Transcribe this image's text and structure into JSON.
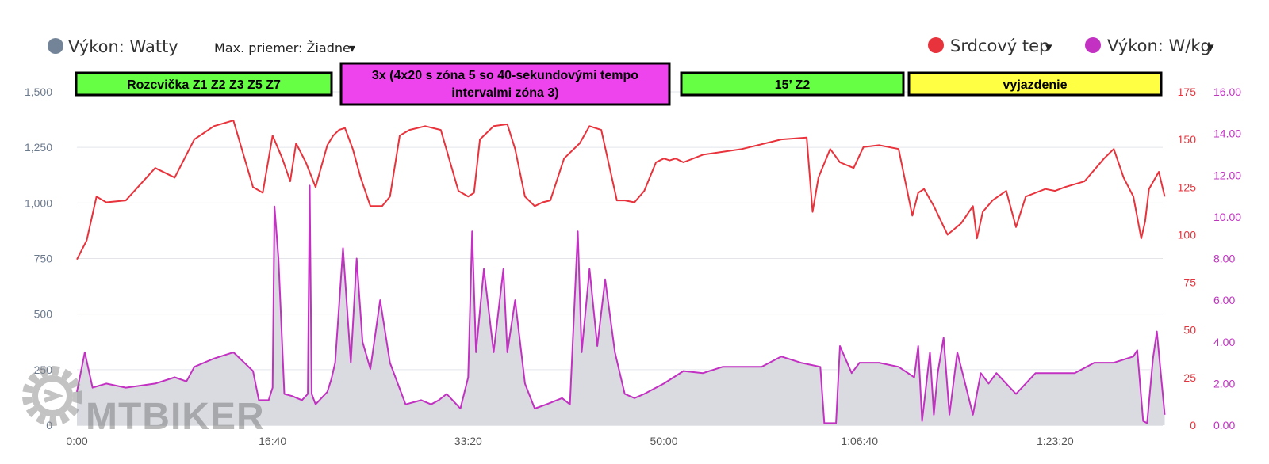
{
  "legend": {
    "power_watts": "Výkon: Watty",
    "max_avg": "Max. priemer: Žiadne",
    "heart_rate": "Srdcový tep",
    "power_wkg": "Výkon: W/kg",
    "dropdown_arrow": "▾"
  },
  "colors": {
    "heart_rate": "#e8333c",
    "power_line": "#c231c2",
    "power_fill": "#d9dbe1",
    "legend_watts_dot": "#748498",
    "axis_left_text": "#6c7a8e",
    "axis_hr_text": "#e8333c",
    "axis_wkg_text": "#c231c2",
    "grid": "#e3e5e9",
    "warmup_green": "#66ff44",
    "interval_magenta": "#ee44ee",
    "z2_green": "#66ff44",
    "cooldown_yellow": "#ffff44"
  },
  "segments": [
    {
      "label": "Rozcvička Z1 Z2 Z3 Z5 Z7",
      "color": "#66ff44"
    },
    {
      "label": "3x (4x20 s zóna 5 so 40-sekundovými tempo intervalmi zóna 3)",
      "line1": "3x (4x20 s zóna 5 so 40-sekundovými tempo",
      "line2": "intervalmi zóna 3)",
      "color": "#ee44ee"
    },
    {
      "label": "15’ Z2",
      "color": "#66ff44"
    },
    {
      "label": "vyjazdenie",
      "color": "#ffff44"
    }
  ],
  "watermark": "MTBIKER",
  "chart_data": {
    "type": "line",
    "x_unit": "elapsed time (s)",
    "x_tick_labels": [
      "0:00",
      "16:40",
      "33:20",
      "50:00",
      "1:06:40",
      "1:23:20"
    ],
    "x_tick_values": [
      0,
      1000,
      2000,
      3000,
      4000,
      5000
    ],
    "xlim": [
      0,
      5550
    ],
    "axes": {
      "left_watts": {
        "ticks": [
          "0",
          "250",
          "500",
          "750",
          "1,000",
          "1,250",
          "1,500"
        ],
        "ylim": [
          0,
          1500
        ]
      },
      "right_hr": {
        "ticks": [
          "0",
          "25",
          "50",
          "75",
          "100",
          "125",
          "150",
          "175"
        ],
        "ylim": [
          0,
          175
        ]
      },
      "right_wkg": {
        "ticks": [
          "0.00",
          "2.00",
          "4.00",
          "6.00",
          "8.00",
          "10.00",
          "12.00",
          "14.00",
          "16.00"
        ],
        "ylim": [
          0,
          16
        ]
      }
    },
    "series": [
      {
        "name": "Srdcový tep",
        "axis": "right_hr",
        "x": [
          0,
          50,
          100,
          150,
          250,
          400,
          500,
          600,
          700,
          800,
          900,
          950,
          1000,
          1050,
          1090,
          1120,
          1170,
          1220,
          1280,
          1310,
          1340,
          1370,
          1410,
          1450,
          1500,
          1560,
          1600,
          1650,
          1700,
          1780,
          1860,
          1950,
          2000,
          2030,
          2060,
          2130,
          2200,
          2240,
          2290,
          2340,
          2380,
          2420,
          2490,
          2570,
          2620,
          2680,
          2760,
          2800,
          2850,
          2900,
          2960,
          3000,
          3030,
          3060,
          3100,
          3200,
          3400,
          3600,
          3730,
          3760,
          3790,
          3850,
          3900,
          3970,
          4020,
          4100,
          4200,
          4270,
          4300,
          4330,
          4380,
          4450,
          4520,
          4580,
          4600,
          4630,
          4680,
          4750,
          4800,
          4850,
          4900,
          4950,
          5000,
          5050,
          5150,
          5250,
          5300,
          5350,
          5400,
          5440,
          5460,
          5480,
          5530,
          5560
        ],
        "values": [
          87,
          97,
          120,
          117,
          118,
          135,
          130,
          150,
          157,
          160,
          125,
          122,
          152,
          140,
          128,
          148,
          138,
          125,
          147,
          152,
          155,
          156,
          145,
          130,
          115,
          115,
          120,
          152,
          155,
          157,
          155,
          123,
          120,
          122,
          150,
          157,
          158,
          145,
          120,
          115,
          117,
          118,
          140,
          148,
          157,
          155,
          118,
          118,
          117,
          123,
          138,
          140,
          139,
          140,
          138,
          142,
          145,
          150,
          151,
          112,
          130,
          145,
          138,
          135,
          146,
          147,
          145,
          110,
          122,
          124,
          115,
          100,
          106,
          115,
          98,
          112,
          118,
          123,
          104,
          120,
          122,
          124,
          123,
          125,
          128,
          140,
          145,
          130,
          120,
          98,
          107,
          124,
          133,
          120
        ]
      },
      {
        "name": "Výkon: W/kg",
        "axis": "right_wkg",
        "x": [
          0,
          40,
          80,
          150,
          250,
          400,
          500,
          560,
          600,
          700,
          800,
          900,
          930,
          980,
          1000,
          1010,
          1030,
          1060,
          1100,
          1150,
          1180,
          1190,
          1200,
          1220,
          1280,
          1300,
          1320,
          1360,
          1400,
          1430,
          1460,
          1500,
          1550,
          1600,
          1680,
          1760,
          1810,
          1850,
          1890,
          1960,
          2000,
          2020,
          2040,
          2080,
          2130,
          2180,
          2200,
          2240,
          2290,
          2340,
          2400,
          2480,
          2520,
          2560,
          2580,
          2620,
          2660,
          2700,
          2750,
          2800,
          2850,
          2900,
          3000,
          3100,
          3200,
          3300,
          3500,
          3600,
          3700,
          3800,
          3820,
          3880,
          3900,
          3960,
          4000,
          4100,
          4200,
          4280,
          4300,
          4320,
          4360,
          4380,
          4400,
          4430,
          4460,
          4500,
          4540,
          4580,
          4620,
          4660,
          4700,
          4800,
          4900,
          5000,
          5100,
          5200,
          5300,
          5400,
          5420,
          5450,
          5470,
          5500,
          5520,
          5560
        ],
        "values": [
          1.6,
          3.5,
          1.8,
          2.0,
          1.8,
          2.0,
          2.3,
          2.1,
          2.8,
          3.2,
          3.5,
          2.6,
          1.2,
          1.2,
          1.8,
          10.5,
          8.0,
          1.5,
          1.4,
          1.2,
          1.5,
          11.5,
          1.5,
          1.0,
          1.6,
          2.2,
          3.0,
          8.5,
          3.0,
          8.0,
          4.0,
          2.7,
          6.0,
          3.0,
          1.0,
          1.2,
          1.0,
          1.2,
          1.5,
          0.8,
          2.3,
          9.3,
          3.5,
          7.5,
          3.5,
          7.5,
          3.5,
          6.0,
          2.0,
          0.8,
          1.0,
          1.3,
          1.0,
          9.3,
          3.5,
          7.5,
          3.8,
          7.0,
          3.5,
          1.5,
          1.3,
          1.5,
          2.0,
          2.6,
          2.5,
          2.8,
          2.8,
          3.3,
          3.0,
          2.8,
          0.1,
          0.1,
          3.8,
          2.5,
          3.0,
          3.0,
          2.8,
          2.3,
          3.8,
          0.2,
          3.5,
          0.5,
          2.5,
          4.2,
          0.5,
          3.5,
          2.0,
          0.5,
          2.5,
          2.0,
          2.5,
          1.5,
          2.5,
          2.5,
          2.5,
          3.0,
          3.0,
          3.3,
          3.6,
          0.2,
          0.1,
          3.2,
          4.5,
          0.5
        ]
      }
    ]
  }
}
